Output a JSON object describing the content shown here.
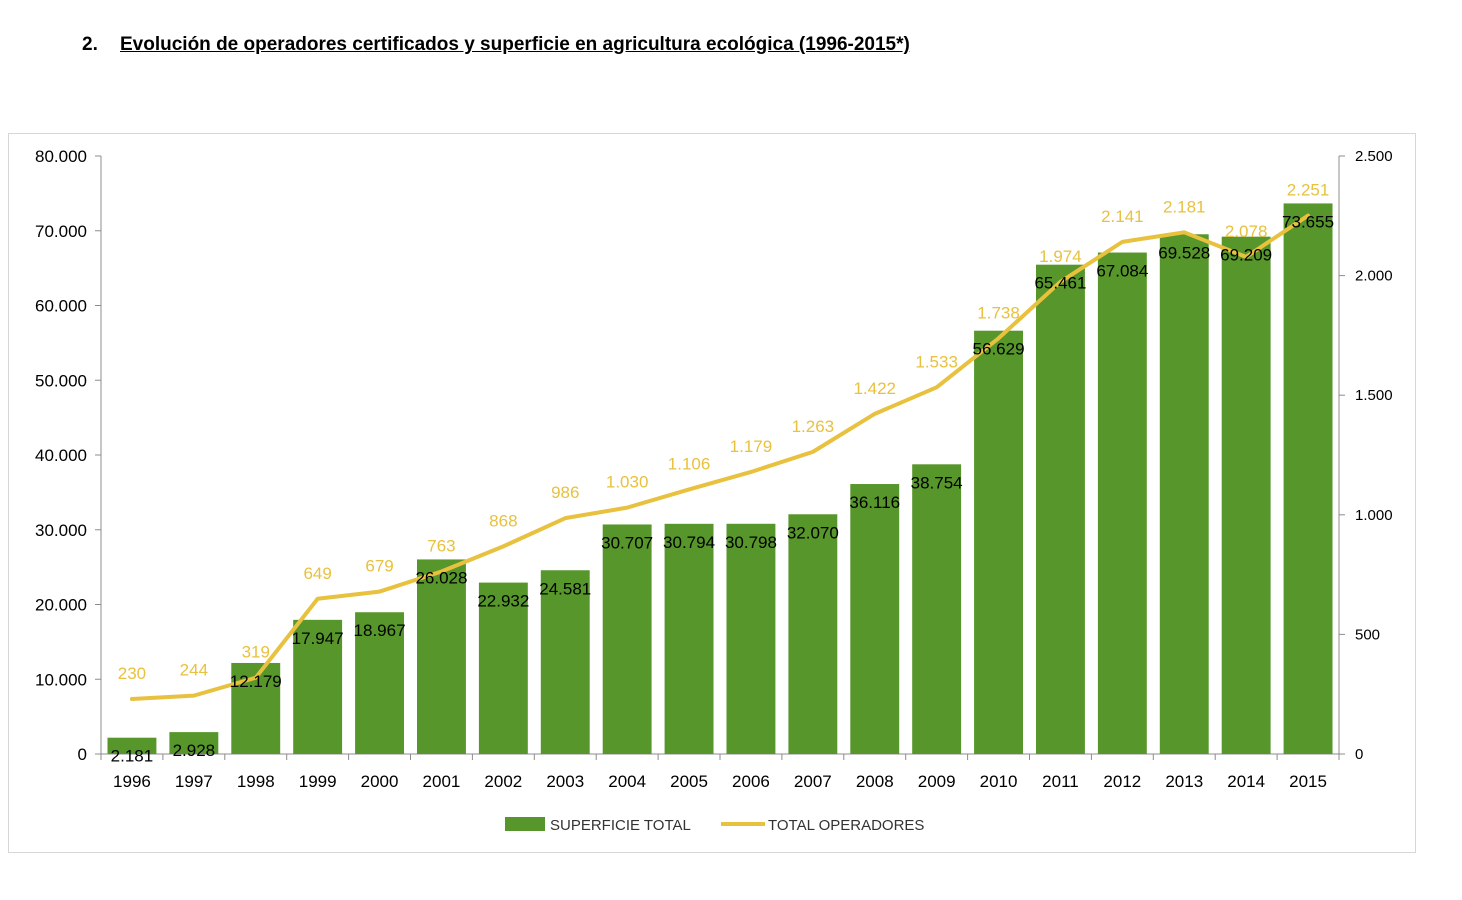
{
  "heading": {
    "number": "2.",
    "title": "Evolución de operadores certificados y superficie en agricultura ecológica (1996-2015*)"
  },
  "chart_data": {
    "type": "bar",
    "categories": [
      "1996",
      "1997",
      "1998",
      "1999",
      "2000",
      "2001",
      "2002",
      "2003",
      "2004",
      "2005",
      "2006",
      "2007",
      "2008",
      "2009",
      "2010",
      "2011",
      "2012",
      "2013",
      "2014",
      "2015"
    ],
    "series": [
      {
        "name": "SUPERFICIE TOTAL",
        "type": "bar",
        "axis": "left",
        "color": "#56962a",
        "values": [
          2181,
          2928,
          12179,
          17947,
          18967,
          26028,
          22932,
          24581,
          30707,
          30794,
          30798,
          32070,
          36116,
          38754,
          56629,
          65461,
          67084,
          69528,
          69209,
          73655
        ],
        "labels": [
          "2.181",
          "2.928",
          "12.179",
          "17.947",
          "18.967",
          "26.028",
          "22.932",
          "24.581",
          "30.707",
          "30.794",
          "30.798",
          "32.070",
          "36.116",
          "38.754",
          "56.629",
          "65.461",
          "67.084",
          "69.528",
          "69.209",
          "73.655"
        ]
      },
      {
        "name": "TOTAL OPERADORES",
        "type": "line",
        "axis": "right",
        "color": "#e8c13e",
        "values": [
          230,
          244,
          319,
          649,
          679,
          763,
          868,
          986,
          1030,
          1106,
          1179,
          1263,
          1422,
          1533,
          1738,
          1974,
          2141,
          2181,
          2078,
          2251
        ],
        "labels": [
          "230",
          "244",
          "319",
          "649",
          "679",
          "763",
          "868",
          "986",
          "1.030",
          "1.106",
          "1.179",
          "1.263",
          "1.422",
          "1.533",
          "1.738",
          "1.974",
          "2.141",
          "2.181",
          "2.078",
          "2.251"
        ]
      }
    ],
    "y_left": {
      "ylim": [
        0,
        80000
      ],
      "ticks": [
        0,
        10000,
        20000,
        30000,
        40000,
        50000,
        60000,
        70000,
        80000
      ],
      "tick_labels": [
        "0",
        "10.000",
        "20.000",
        "30.000",
        "40.000",
        "50.000",
        "60.000",
        "70.000",
        "80.000"
      ]
    },
    "y_right": {
      "ylim": [
        0,
        2500
      ],
      "ticks": [
        0,
        500,
        1000,
        1500,
        2000,
        2500
      ],
      "tick_labels": [
        "0",
        "500",
        "1.000",
        "1.500",
        "2.000",
        "2.500"
      ]
    },
    "grid": false,
    "legend_position": "bottom-center"
  }
}
